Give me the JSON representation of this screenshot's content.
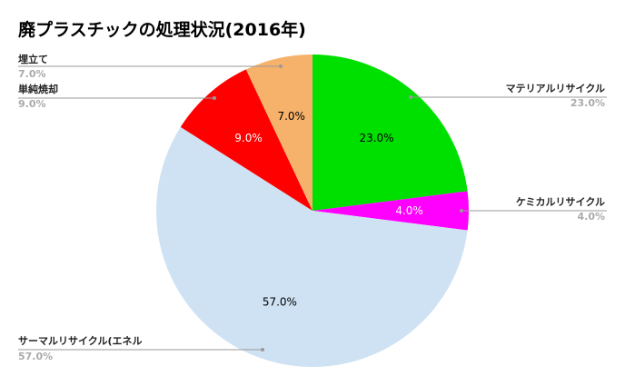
{
  "chart_data": {
    "type": "pie",
    "title": "廃プラスチックの処理状況(2016年)",
    "slices": [
      {
        "label": "マテリアルリサイクル",
        "value": 23.0,
        "display": "23.0%",
        "color": "#00e000",
        "label_color": "#000000"
      },
      {
        "label": "ケミカルリサイクル",
        "value": 4.0,
        "display": "4.0%",
        "color": "#ff00ff",
        "label_color": "#ffffff"
      },
      {
        "label": "サーマルリサイクル(エネル",
        "value": 57.0,
        "display": "57.0%",
        "color": "#cfe2f3",
        "label_color": "#000000"
      },
      {
        "label": "単純焼却",
        "value": 9.0,
        "display": "9.0%",
        "color": "#ff0000",
        "label_color": "#ffffff"
      },
      {
        "label": "埋立て",
        "value": 7.0,
        "display": "7.0%",
        "color": "#f6b26b",
        "label_color": "#000000"
      }
    ],
    "start_angle_deg": 0,
    "direction": "clockwise",
    "legend": "callouts"
  }
}
